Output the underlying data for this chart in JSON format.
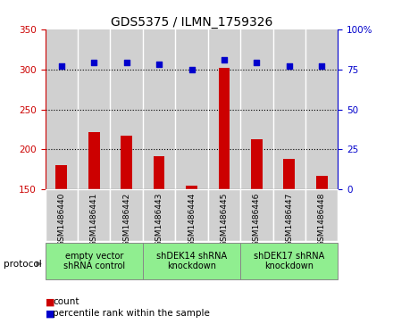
{
  "title": "GDS5375 / ILMN_1759326",
  "samples": [
    "GSM1486440",
    "GSM1486441",
    "GSM1486442",
    "GSM1486443",
    "GSM1486444",
    "GSM1486445",
    "GSM1486446",
    "GSM1486447",
    "GSM1486448"
  ],
  "counts": [
    180,
    222,
    217,
    192,
    155,
    302,
    213,
    188,
    167
  ],
  "percentiles": [
    77,
    79,
    79,
    78,
    75,
    81,
    79,
    77,
    77
  ],
  "groups": [
    {
      "label": "empty vector\nshRNA control",
      "start": 0,
      "end": 2
    },
    {
      "label": "shDEK14 shRNA\nknockdown",
      "start": 3,
      "end": 5
    },
    {
      "label": "shDEK17 shRNA\nknockdown",
      "start": 6,
      "end": 8
    }
  ],
  "left_ylim": [
    150,
    350
  ],
  "left_yticks": [
    150,
    200,
    250,
    300,
    350
  ],
  "right_ylim": [
    0,
    100
  ],
  "right_yticks": [
    0,
    25,
    50,
    75,
    100
  ],
  "bar_color": "#cc0000",
  "scatter_color": "#0000cc",
  "col_bg_color": "#d0d0d0",
  "group_bg_color": "#90ee90",
  "group_border_color": "#888888",
  "title_fontsize": 10,
  "tick_fontsize": 7.5,
  "label_fontsize": 6.5,
  "group_fontsize": 7,
  "legend_fontsize": 7.5,
  "dotted_lines": [
    200,
    250,
    300
  ]
}
